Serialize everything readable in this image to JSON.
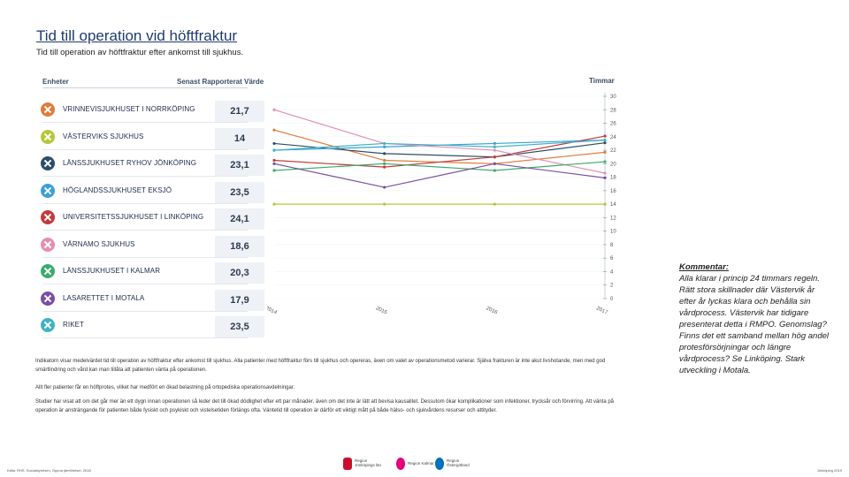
{
  "header": {
    "title": "Tid till operation vid höftfraktur",
    "subtitle": "Tid till operation av höftfraktur efter ankomst till sjukhus."
  },
  "table": {
    "col_units": "Enheter",
    "col_value": "Senast Rapporterat Värde",
    "rows": [
      {
        "name": "VRINNEVISJUKHUSET I NORRKÖPING",
        "value": "21,7",
        "color": "#e07b39"
      },
      {
        "name": "VÄSTERVIKS SJUKHUS",
        "value": "14",
        "color": "#b5c738"
      },
      {
        "name": "LÄNSSJUKHUSET RYHOV JÖNKÖPING",
        "value": "23,1",
        "color": "#2e4d66"
      },
      {
        "name": "HÖGLANDSSJUKHUSET EKSJÖ",
        "value": "23,5",
        "color": "#3aa0d8"
      },
      {
        "name": "UNIVERSITETSSJUKHUSET I LINKÖPING",
        "value": "24,1",
        "color": "#c43b3b"
      },
      {
        "name": "VÄRNAMO SJUKHUS",
        "value": "18,6",
        "color": "#e58fb0"
      },
      {
        "name": "LÄNSSJUKHUSET I KALMAR",
        "value": "20,3",
        "color": "#3bab6b"
      },
      {
        "name": "LASARETTET I MOTALA",
        "value": "17,9",
        "color": "#7b4fa0"
      },
      {
        "name": "RIKET",
        "value": "23,5",
        "color": "#3fb3c4"
      }
    ]
  },
  "chart_data": {
    "type": "line",
    "ylabel": "Timmar",
    "x": [
      "2014",
      "2015",
      "2016",
      "2017"
    ],
    "ylim": [
      0,
      30
    ],
    "y_ticks": [
      "0",
      "2",
      "4",
      "6",
      "8",
      "10",
      "12",
      "14",
      "16",
      "18",
      "20",
      "22",
      "24",
      "26",
      "28",
      "30"
    ],
    "series": [
      {
        "name": "VRINNEVISJUKHUSET I NORRKÖPING",
        "color": "#e07b39",
        "values": [
          25.0,
          20.5,
          20.0,
          21.7
        ]
      },
      {
        "name": "VÄSTERVIKS SJUKHUS",
        "color": "#b5c738",
        "values": [
          14.0,
          14.0,
          14.0,
          14.0
        ]
      },
      {
        "name": "LÄNSSJUKHUSET RYHOV JÖNKÖPING",
        "color": "#2e4d66",
        "values": [
          23.0,
          21.5,
          21.0,
          23.1
        ]
      },
      {
        "name": "HÖGLANDSSJUKHUSET EKSJÖ",
        "color": "#3aa0d8",
        "values": [
          22.0,
          22.5,
          23.0,
          23.5
        ]
      },
      {
        "name": "UNIVERSITETSSJUKHUSET I LINKÖPING",
        "color": "#c43b3b",
        "values": [
          20.5,
          19.5,
          21.0,
          24.1
        ]
      },
      {
        "name": "VÄRNAMO SJUKHUS",
        "color": "#e58fb0",
        "values": [
          28.0,
          23.0,
          22.0,
          18.6
        ]
      },
      {
        "name": "LÄNSSJUKHUSET I KALMAR",
        "color": "#3bab6b",
        "values": [
          19.0,
          20.0,
          19.0,
          20.3
        ]
      },
      {
        "name": "LASARETTET I MOTALA",
        "color": "#7b4fa0",
        "values": [
          20.0,
          16.5,
          20.0,
          17.9
        ]
      },
      {
        "name": "RIKET",
        "color": "#3fb3c4",
        "values": [
          22.0,
          23.0,
          22.5,
          23.5
        ]
      }
    ]
  },
  "text": {
    "p1": "Indikatorn visar medelvärdet tid till operation av höftfraktur efter ankomst till sjukhus. Alla patienter med höftfraktur förs till sjukhus och opereras, även om valet av operationsmetod varierar. Själva frakturen är inte akut livshotande, men med god smärtlindring och vård kan man tillåta att patienten vänta på operationen.",
    "p2": "Allt fler patienter får en höftprotes, vilket har medfört en ökad belastning på ortopediska operationsavdelningar.",
    "p3": "Studier har visat att om det går mer än ett dygn innan operationen så leder det till ökad dödlighet efter ett par månader, även om det inte är lätt att bevisa kausalitet. Dessutom ökar komplikationer som infektioner, trycksår och förvirring. Att vänta på operation är ansträngande för patienten både fysiskt och psykiskt och vistelsetiden förlängs ofta. Väntetid till operation är därför ett viktigt mått på både hälso- och sjukvårdens resurser och attityder."
  },
  "comment": {
    "heading": "Kommentar:",
    "body": "Alla klarar i princip 24 timmars regeln. Rätt stora skillnader där Västervik år efter år lyckas klara och behålla sin vårdprocess. Västervik har tidigare presenterat detta i RMPO. Genomslag? Finns det ett samband mellan hög andel protesförsörjningar och längre vårdprocess? Se Linköping. Stark utveckling i Motala."
  },
  "footer": {
    "source": "Källa: RHS, Socialstyrelsen, Öppna jämförelser, 2018",
    "right": "Jönköping 2019",
    "logos": [
      {
        "line1": "Region",
        "line2": "Jönköpings län",
        "color": "#c8102e"
      },
      {
        "line1": "Region Kalmar län",
        "line2": "",
        "color": "#e5007d"
      },
      {
        "line1": "Region",
        "line2": "Östergötland",
        "color": "#0072bc"
      }
    ]
  }
}
